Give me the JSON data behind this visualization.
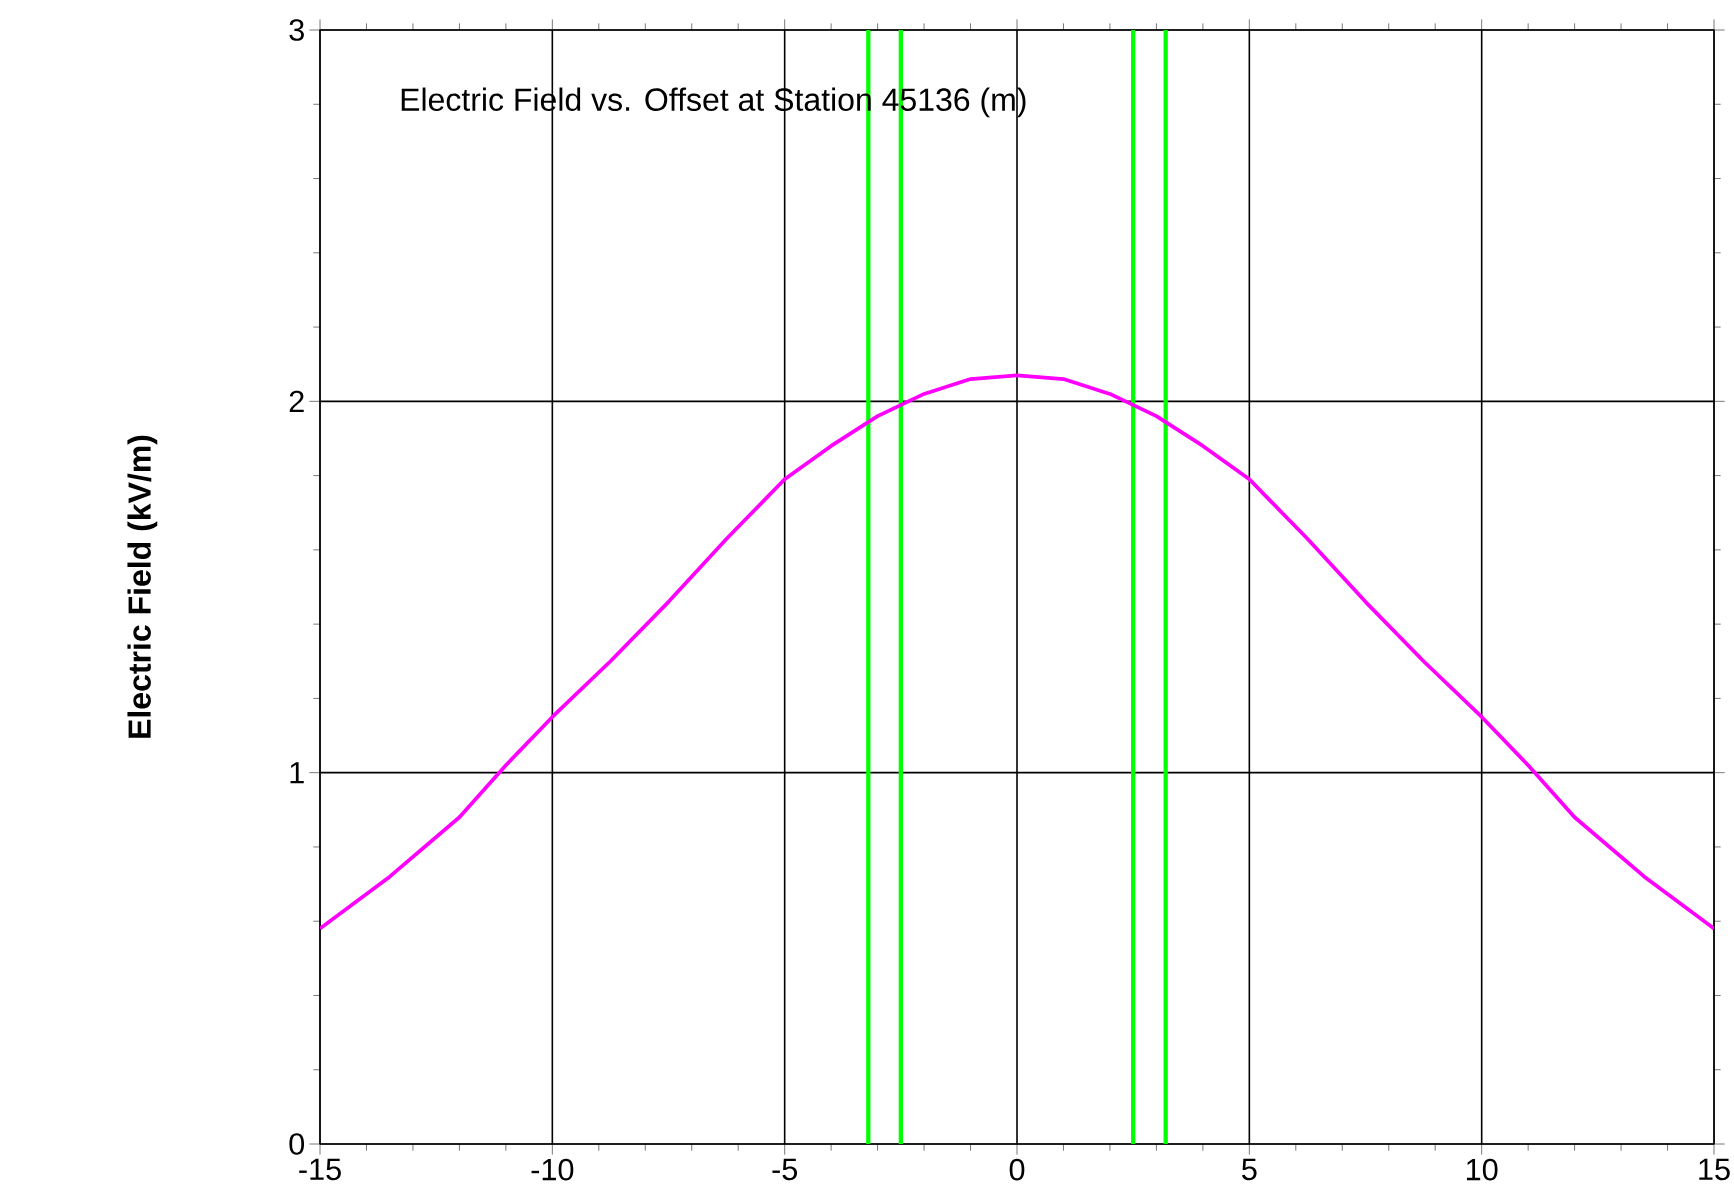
{
  "chart_data": {
    "type": "line",
    "title": "Electric Field vs. Offset at Station 45136 (m)",
    "ylabel": "Electric Field (kV/m)",
    "x": [
      -15,
      -13.5,
      -12,
      -11,
      -10,
      -8.75,
      -7.5,
      -6.25,
      -5,
      -4,
      -3,
      -2,
      -1,
      0,
      1,
      2,
      3,
      4,
      5,
      6.25,
      7.5,
      8.75,
      10,
      11,
      12,
      13.5,
      15
    ],
    "series": [
      {
        "color": "#ff00ff",
        "values": [
          0.58,
          0.72,
          0.88,
          1.02,
          1.15,
          1.3,
          1.46,
          1.63,
          1.79,
          1.88,
          1.96,
          2.02,
          2.06,
          2.07,
          2.06,
          2.02,
          1.96,
          1.88,
          1.79,
          1.63,
          1.46,
          1.3,
          1.15,
          1.02,
          0.88,
          0.72,
          0.58
        ]
      }
    ],
    "xlim": [
      -15,
      15
    ],
    "ylim": [
      0,
      3
    ],
    "xticks": [
      -15,
      -10,
      -5,
      0,
      5,
      10,
      15
    ],
    "yticks": [
      0,
      1,
      2,
      3
    ],
    "ref_lines": [
      {
        "axis": "x",
        "value": -3.2,
        "color": "#00ff00"
      },
      {
        "axis": "x",
        "value": -2.5,
        "color": "#00ff00"
      },
      {
        "axis": "x",
        "value": 2.5,
        "color": "#00ff00"
      },
      {
        "axis": "x",
        "value": 3.2,
        "color": "#00ff00"
      }
    ],
    "grid": true,
    "marker": "none",
    "line_style": "solid"
  }
}
